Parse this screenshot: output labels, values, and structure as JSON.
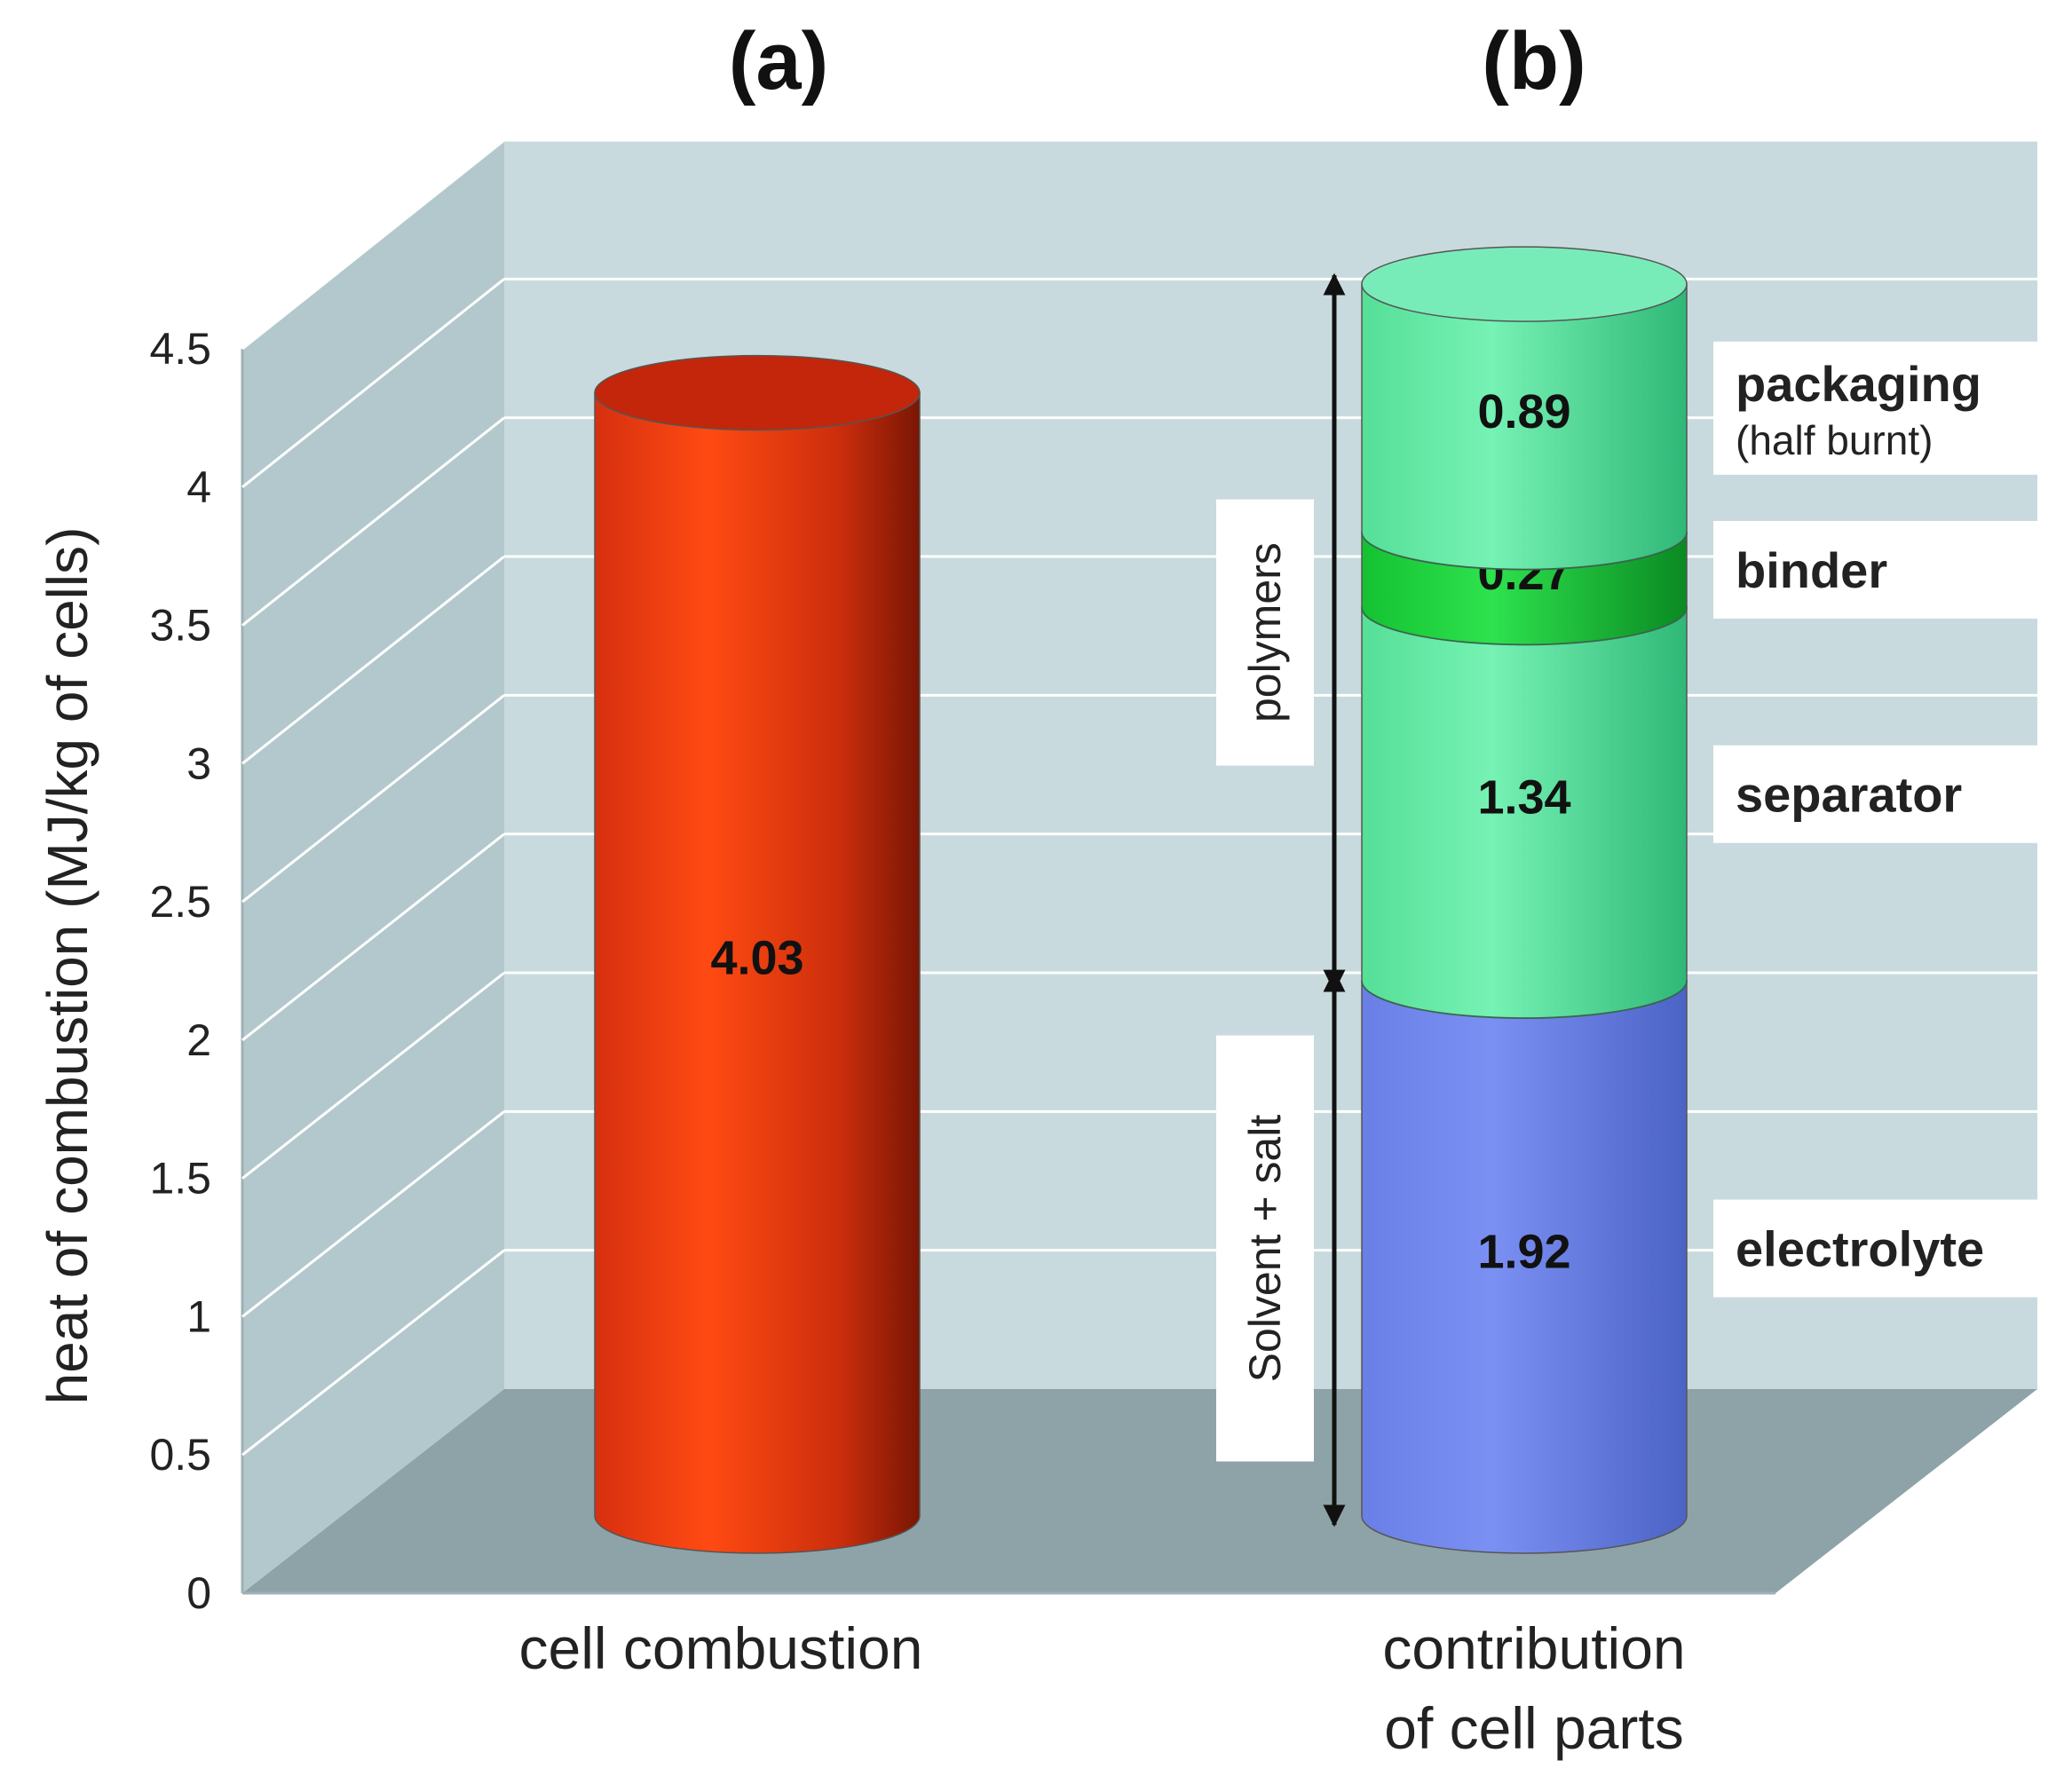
{
  "chart_data": {
    "type": "bar",
    "style": "3d-cylinder",
    "ylabel": "heat of combustion (MJ/kg of cells)",
    "ylim": [
      0,
      4.5
    ],
    "yticks": [
      "0",
      "0.5",
      "1",
      "1.5",
      "2",
      "2.5",
      "3",
      "3.5",
      "4",
      "4.5"
    ],
    "grid": true,
    "panels": [
      {
        "panel_label": "(a)",
        "category": "cell combustion",
        "segments": [
          {
            "name": "",
            "value": 4.03,
            "value_label": "4.03",
            "color": "#ff4a12"
          }
        ]
      },
      {
        "panel_label": "(b)",
        "category_lines": [
          "contribution",
          "of cell parts"
        ],
        "segments": [
          {
            "name": "electrolyte",
            "value": 1.92,
            "value_label": "1.92",
            "color": "#6a82ee"
          },
          {
            "name": "separator",
            "value": 1.34,
            "value_label": "1.34",
            "color": "#66eda8"
          },
          {
            "name": "binder",
            "value": 0.27,
            "value_label": "0.27",
            "color": "#1ed83c"
          },
          {
            "name": "packaging",
            "note": "(half burnt)",
            "value": 0.89,
            "value_label": "0.89",
            "color": "#66eda8"
          }
        ],
        "groups": [
          {
            "label": "Solvent + salt",
            "from": 0,
            "to": 1.92
          },
          {
            "label": "polymers",
            "from": 1.92,
            "to": 4.42
          }
        ]
      }
    ],
    "colors": {
      "wall": "#c8dadd",
      "floor": "#8ea3a8",
      "grid": "#ffffff"
    }
  }
}
